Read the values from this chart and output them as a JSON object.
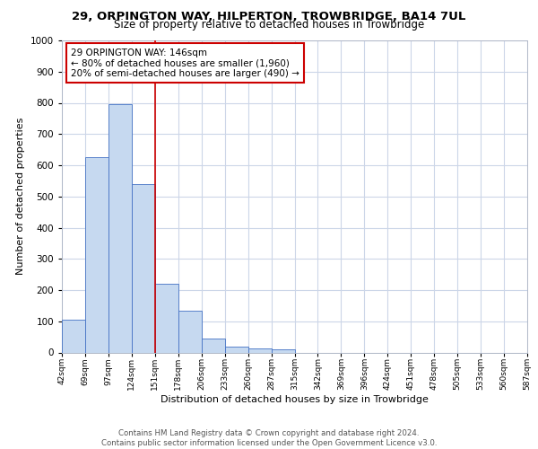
{
  "title1": "29, ORPINGTON WAY, HILPERTON, TROWBRIDGE, BA14 7UL",
  "title2": "Size of property relative to detached houses in Trowbridge",
  "xlabel": "Distribution of detached houses by size in Trowbridge",
  "ylabel": "Number of detached properties",
  "bar_values": [
    105,
    625,
    795,
    540,
    220,
    135,
    45,
    20,
    13,
    10,
    0,
    0,
    0,
    0,
    0,
    0,
    0,
    0,
    0,
    0
  ],
  "bin_labels": [
    "42sqm",
    "69sqm",
    "97sqm",
    "124sqm",
    "151sqm",
    "178sqm",
    "206sqm",
    "233sqm",
    "260sqm",
    "287sqm",
    "315sqm",
    "342sqm",
    "369sqm",
    "396sqm",
    "424sqm",
    "451sqm",
    "478sqm",
    "505sqm",
    "533sqm",
    "560sqm",
    "587sqm"
  ],
  "bar_color": "#c6d9f0",
  "bar_edge_color": "#4472c4",
  "vline_x": 4,
  "vline_color": "#cc0000",
  "annotation_text": "29 ORPINGTON WAY: 146sqm\n← 80% of detached houses are smaller (1,960)\n20% of semi-detached houses are larger (490) →",
  "annotation_box_color": "#ffffff",
  "annotation_box_edge": "#cc0000",
  "ylim": [
    0,
    1000
  ],
  "yticks": [
    0,
    100,
    200,
    300,
    400,
    500,
    600,
    700,
    800,
    900,
    1000
  ],
  "footer": "Contains HM Land Registry data © Crown copyright and database right 2024.\nContains public sector information licensed under the Open Government Licence v3.0.",
  "background_color": "#ffffff",
  "grid_color": "#ccd6e8"
}
